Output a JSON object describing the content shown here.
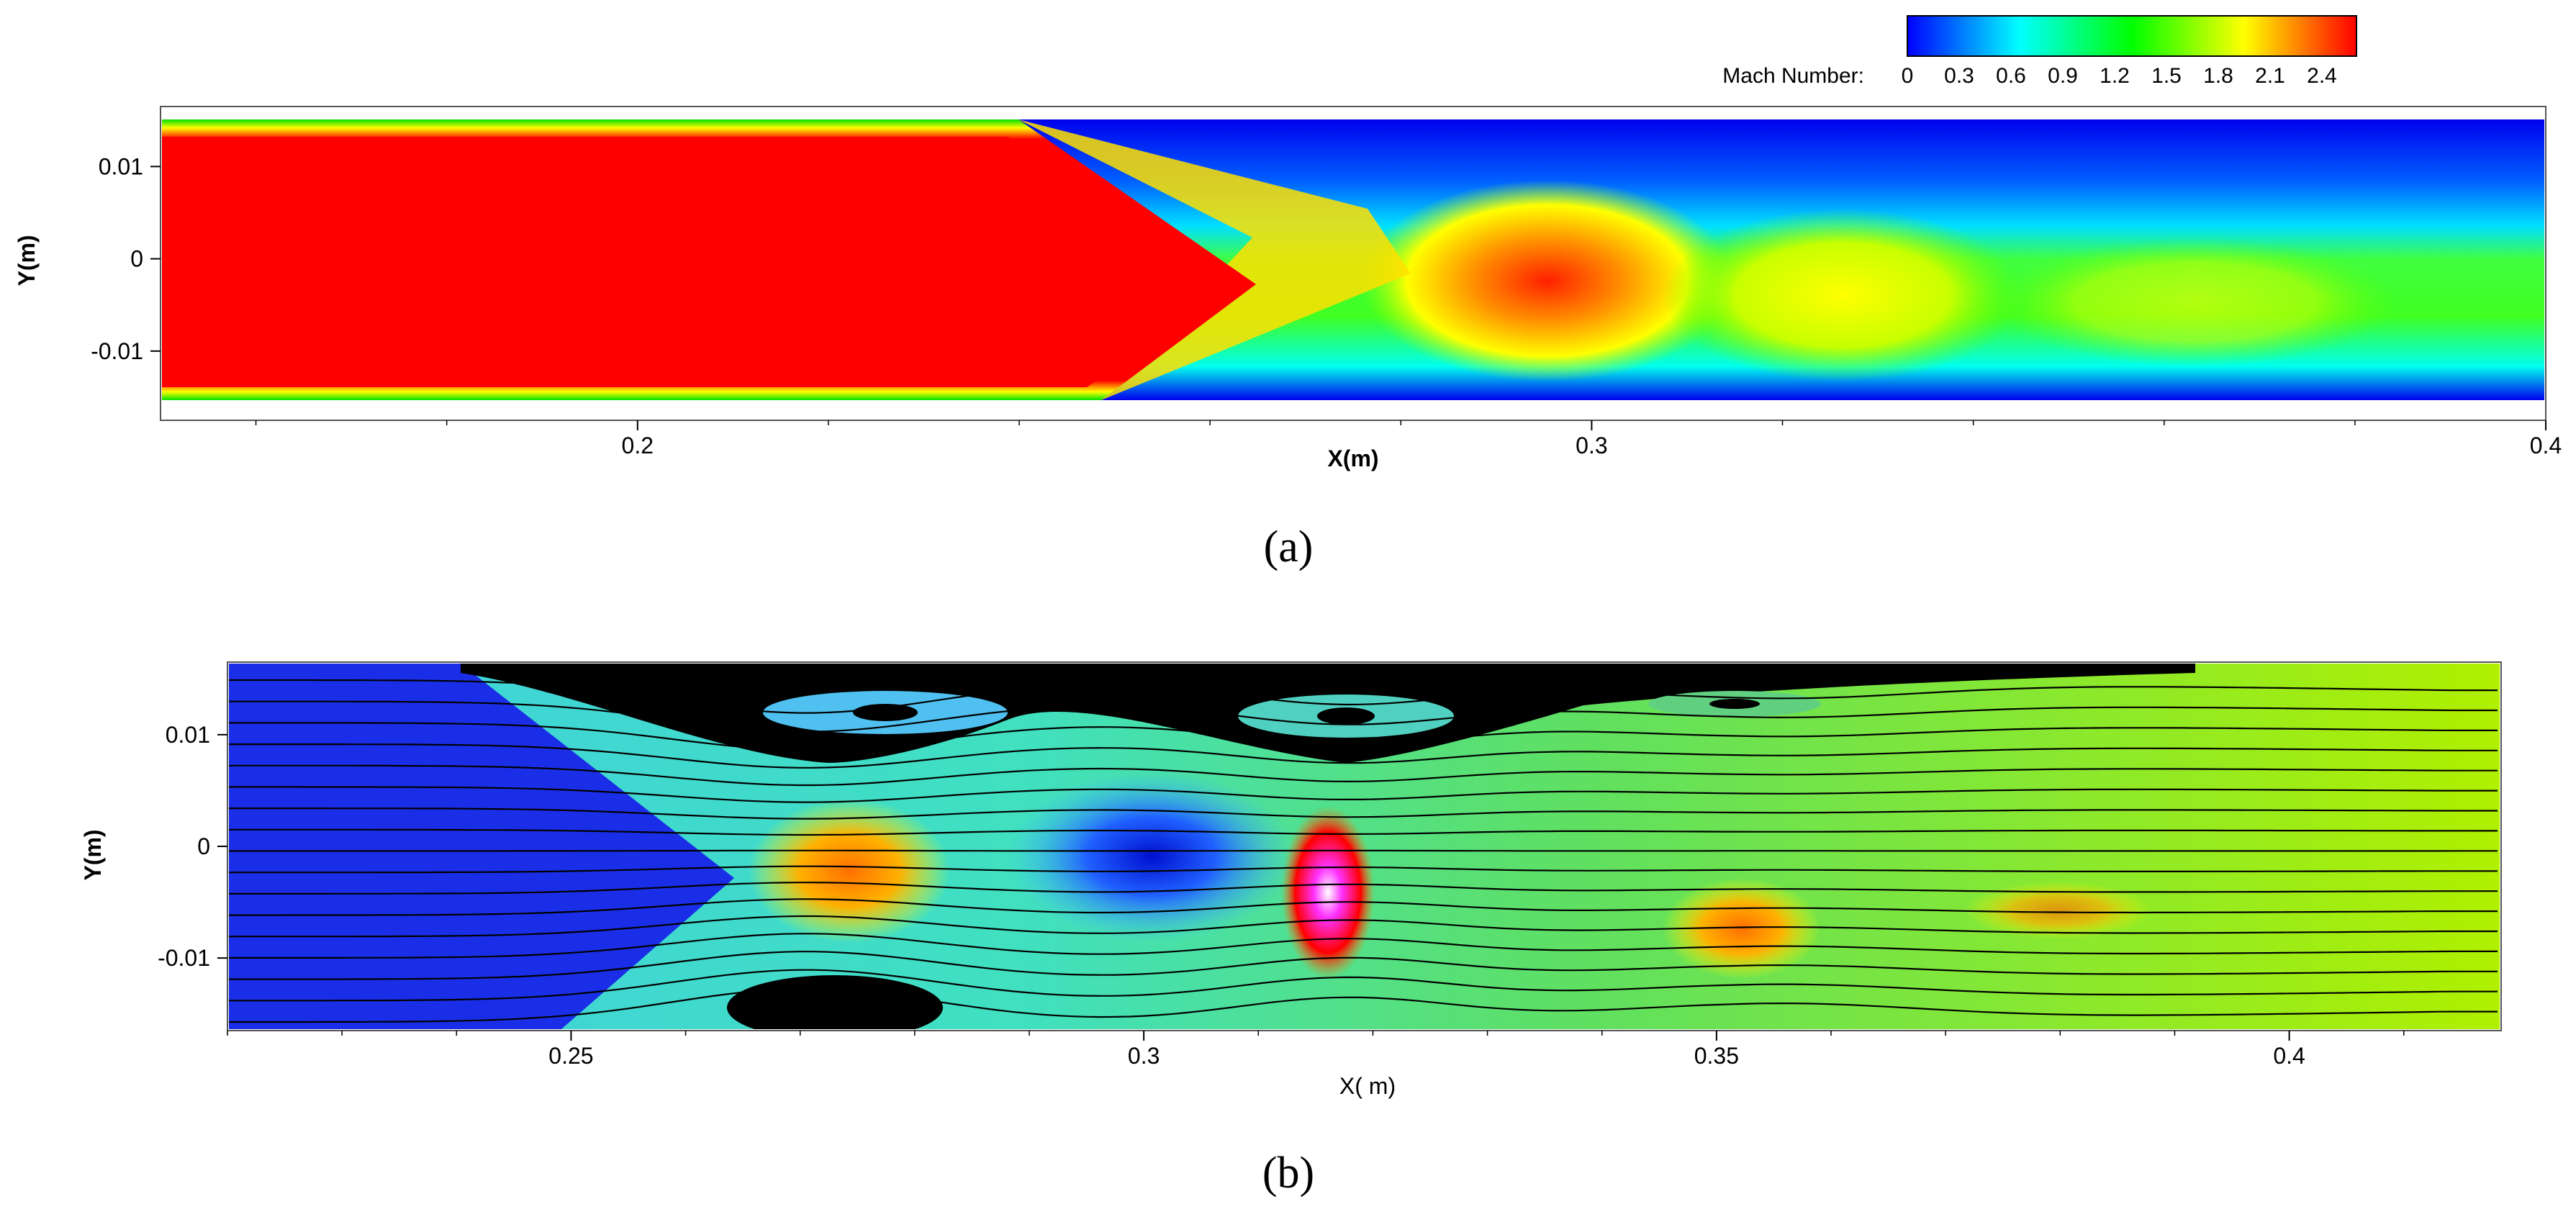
{
  "chart_data": [
    {
      "type": "heatmap",
      "panel_label": "(a)",
      "variable": "Mach Number",
      "xlabel": "X(m)",
      "ylabel": "Y(m)",
      "xlim": [
        0.15,
        0.4
      ],
      "ylim": [
        -0.0175,
        0.0165
      ],
      "xticks": [
        0.2,
        0.3,
        0.4
      ],
      "xtick_labels": [
        "0.2",
        "0.3",
        "0.4"
      ],
      "yticks": [
        0.01,
        0,
        -0.01
      ],
      "ytick_labels": [
        "0.01",
        "0",
        "-0.01"
      ],
      "grid": false,
      "colorbar": {
        "label": "Mach Number:",
        "position": "top-right",
        "range": [
          0,
          2.6
        ],
        "ticks": [
          0,
          0.3,
          0.6,
          0.9,
          1.2,
          1.5,
          1.8,
          2.1,
          2.4
        ],
        "tick_labels": [
          "0",
          "0.3",
          "0.6",
          "0.9",
          "1.2",
          "1.5",
          "1.8",
          "2.1",
          "2.4"
        ],
        "colors": [
          "#0000ff",
          "#00ffff",
          "#00ff00",
          "#ffff00",
          "#ff0000"
        ]
      },
      "field_regions": [
        {
          "x": [
            0.15,
            0.241
          ],
          "y": [
            -0.0145,
            0.0135
          ],
          "mach": 2.5
        },
        {
          "x": [
            0.262,
            0.262
          ],
          "y": [
            0,
            0
          ],
          "mach": 1.6
        },
        {
          "x": [
            0.296,
            0.296
          ],
          "y": [
            -0.002,
            -0.002
          ],
          "mach": 2.0
        },
        {
          "x": [
            0.326,
            0.326
          ],
          "y": [
            -0.003,
            -0.003
          ],
          "mach": 1.4
        },
        {
          "x": [
            0.39,
            0.39
          ],
          "y": [
            0.012,
            0.012
          ],
          "mach": 0.2
        }
      ]
    },
    {
      "type": "heatmap",
      "panel_label": "(b)",
      "xlabel": "X( m)",
      "ylabel": "Y(m)",
      "xlim": [
        0.22,
        0.4185
      ],
      "ylim": [
        -0.0165,
        0.0165
      ],
      "xticks": [
        0.25,
        0.3,
        0.35,
        0.4
      ],
      "xtick_labels": [
        "0.25",
        "0.3",
        "0.35",
        "0.4"
      ],
      "yticks": [
        0.01,
        0,
        -0.01
      ],
      "ytick_labels": [
        "0.01",
        "0",
        "-0.01"
      ],
      "grid": false,
      "overlay": "streamlines",
      "streamline_count": 17,
      "recirculation_zones": [
        {
          "x": 0.269,
          "y": 0.0125
        },
        {
          "x": 0.3195,
          "y": 0.0122
        },
        {
          "x": 0.357,
          "y": 0.0135
        },
        {
          "x": 0.273,
          "y": -0.0153
        }
      ]
    }
  ]
}
